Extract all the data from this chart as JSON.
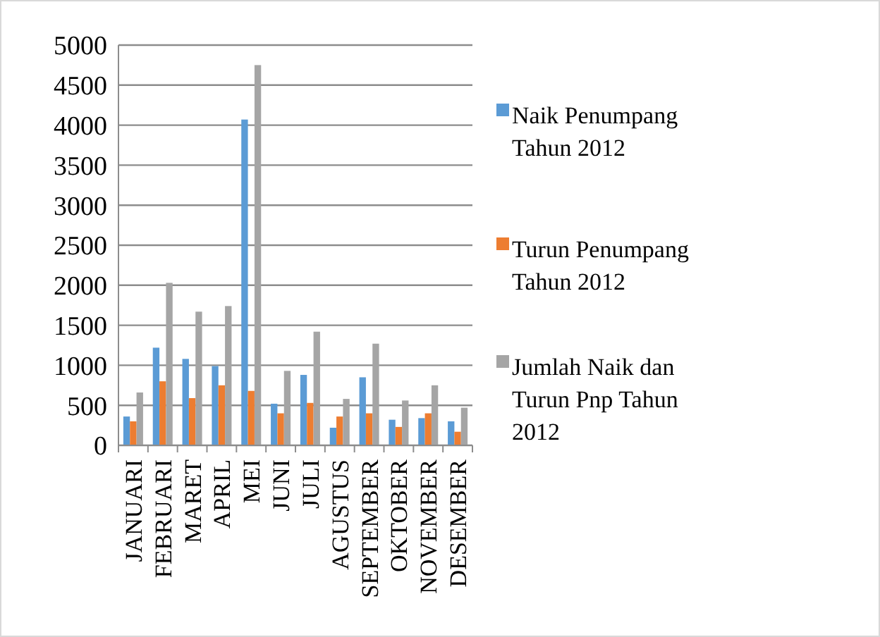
{
  "chart_data": {
    "type": "bar",
    "categories": [
      "JANUARI",
      "FEBRUARI",
      "MARET",
      "APRIL",
      "MEI",
      "JUNI",
      "JULI",
      "AGUSTUS",
      "SEPTEMBER",
      "OKTOBER",
      "NOVEMBER",
      "DESEMBER"
    ],
    "series": [
      {
        "name": "Naik Penumpang Tahun 2012",
        "color": "#5b9bd5",
        "values": [
          360,
          1220,
          1080,
          990,
          4070,
          520,
          880,
          220,
          850,
          320,
          340,
          300
        ]
      },
      {
        "name": "Turun Penumpang Tahun 2012",
        "color": "#ed7d31",
        "values": [
          300,
          800,
          590,
          750,
          680,
          400,
          530,
          360,
          400,
          230,
          400,
          170
        ]
      },
      {
        "name": "Jumlah Naik dan Turun Pnp Tahun 2012",
        "color": "#a5a5a5",
        "values": [
          660,
          2030,
          1670,
          1740,
          4750,
          930,
          1420,
          580,
          1270,
          560,
          750,
          470
        ]
      }
    ],
    "ylim": [
      0,
      5000
    ],
    "yticks": [
      0,
      500,
      1000,
      1500,
      2000,
      2500,
      3000,
      3500,
      4000,
      4500,
      5000
    ],
    "grid": "y",
    "legend": "right"
  }
}
